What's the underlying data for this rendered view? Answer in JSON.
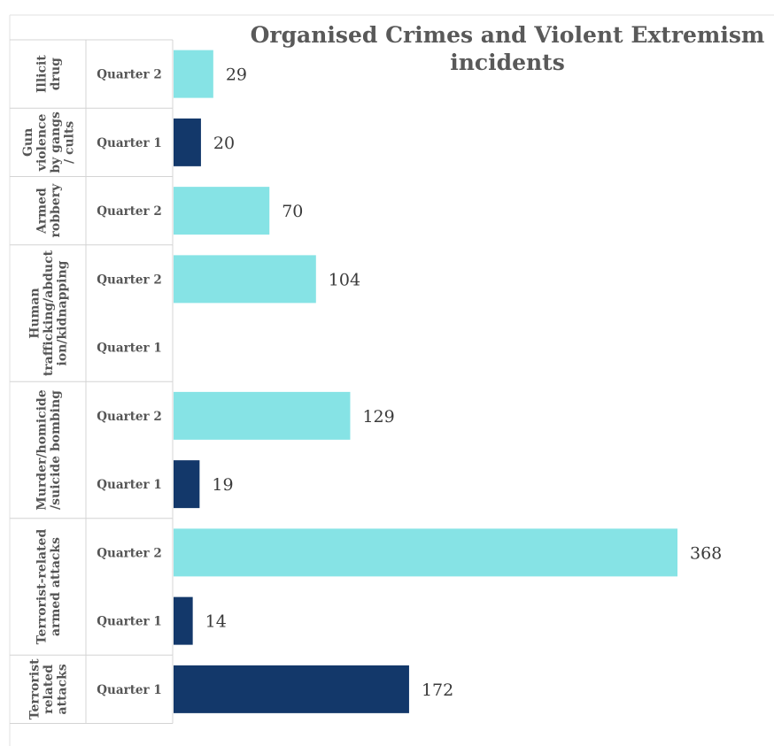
{
  "chart_data": {
    "type": "bar",
    "orientation": "horizontal",
    "title": "Organised Crimes and Violent Extremism incidents",
    "title_lines": [
      "Organised Crimes and Violent Extremism",
      "incidents"
    ],
    "xlabel": "",
    "ylabel": "",
    "grid": false,
    "legend": "none",
    "colors": {
      "Quarter 2": "#86e3e5",
      "Quarter 1": "#13386a"
    },
    "groups": [
      {
        "label": "Illicit drug",
        "label_lines": [
          "Illicit",
          "drug"
        ],
        "rows": [
          {
            "quarter": "Quarter 2",
            "value": 29
          }
        ]
      },
      {
        "label": "Gun violence by gangs / cults",
        "label_lines": [
          "Gun",
          "violence",
          "by gangs",
          "/ cults"
        ],
        "rows": [
          {
            "quarter": "Quarter 1",
            "value": 20
          }
        ]
      },
      {
        "label": "Armed robbery",
        "label_lines": [
          "Armed",
          "robbery"
        ],
        "rows": [
          {
            "quarter": "Quarter 2",
            "value": 70
          }
        ]
      },
      {
        "label": "Human trafficking/abduction/kidnapping",
        "label_lines": [
          "Human",
          "trafficking/abduct",
          "ion/kidnapping"
        ],
        "rows": [
          {
            "quarter": "Quarter 2",
            "value": 104
          },
          {
            "quarter": "Quarter 1",
            "value": null
          }
        ]
      },
      {
        "label": "Murder/homicide /suicide bombing",
        "label_lines": [
          "Murder/homicide",
          "/suicide bombing"
        ],
        "rows": [
          {
            "quarter": "Quarter 2",
            "value": 129
          },
          {
            "quarter": "Quarter 1",
            "value": 19
          }
        ]
      },
      {
        "label": "Terrorist-related armed attacks",
        "label_lines": [
          "Terrorist-related",
          "armed attacks"
        ],
        "rows": [
          {
            "quarter": "Quarter 2",
            "value": 368
          },
          {
            "quarter": "Quarter 1",
            "value": 14
          }
        ]
      },
      {
        "label": "Terrorist related attacks",
        "label_lines": [
          "Terrorist",
          "related",
          "attacks"
        ],
        "rows": [
          {
            "quarter": "Quarter 1",
            "value": 172
          }
        ]
      }
    ]
  }
}
